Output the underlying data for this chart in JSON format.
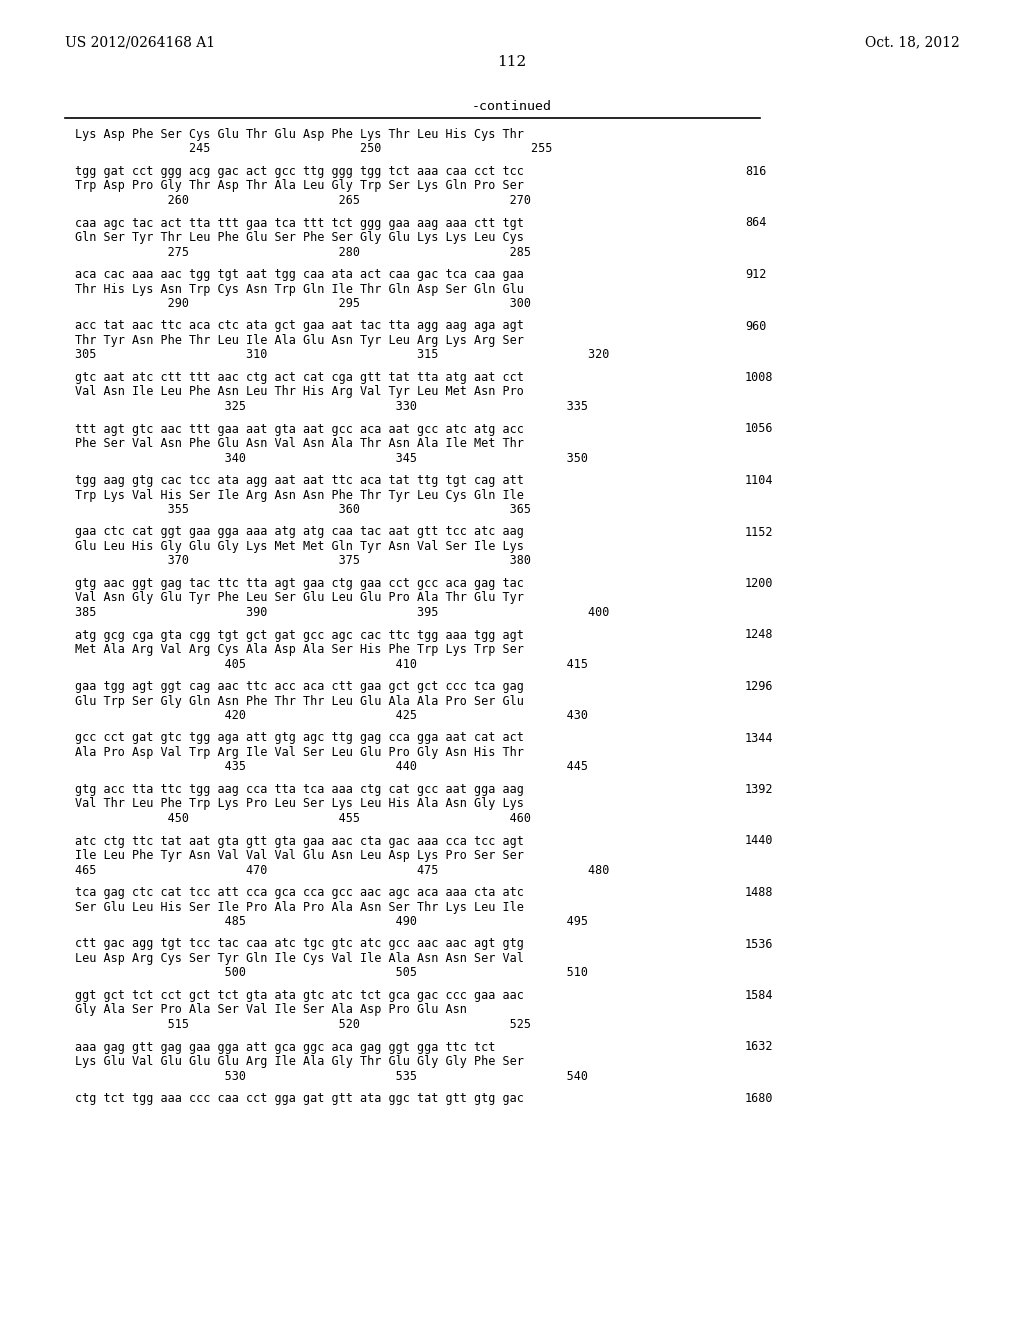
{
  "header_left": "US 2012/0264168 A1",
  "header_right": "Oct. 18, 2012",
  "page_number": "112",
  "continued_label": "-continued",
  "background_color": "#ffffff",
  "text_color": "#000000",
  "content": [
    {
      "type": "header_aa",
      "text": "Lys Asp Phe Ser Cys Glu Thr Glu Asp Phe Lys Thr Leu His Cys Thr",
      "nums": "                245                     250                     255"
    },
    {
      "type": "spacer"
    },
    {
      "type": "dna",
      "text": "tgg gat cct ggg acg gac act gcc ttg ggg tgg tct aaa caa cct tcc",
      "num": "816"
    },
    {
      "type": "aa",
      "text": "Trp Asp Pro Gly Thr Asp Thr Ala Leu Gly Trp Ser Lys Gln Pro Ser"
    },
    {
      "type": "nums",
      "text": "             260                     265                     270"
    },
    {
      "type": "spacer"
    },
    {
      "type": "dna",
      "text": "caa agc tac act tta ttt gaa tca ttt tct ggg gaa aag aaa ctt tgt",
      "num": "864"
    },
    {
      "type": "aa",
      "text": "Gln Ser Tyr Thr Leu Phe Glu Ser Phe Ser Gly Glu Lys Lys Leu Cys"
    },
    {
      "type": "nums",
      "text": "             275                     280                     285"
    },
    {
      "type": "spacer"
    },
    {
      "type": "dna",
      "text": "aca cac aaa aac tgg tgt aat tgg caa ata act caa gac tca caa gaa",
      "num": "912"
    },
    {
      "type": "aa",
      "text": "Thr His Lys Asn Trp Cys Asn Trp Gln Ile Thr Gln Asp Ser Gln Glu"
    },
    {
      "type": "nums",
      "text": "             290                     295                     300"
    },
    {
      "type": "spacer"
    },
    {
      "type": "dna",
      "text": "acc tat aac ttc aca ctc ata gct gaa aat tac tta agg aag aga agt",
      "num": "960"
    },
    {
      "type": "aa",
      "text": "Thr Tyr Asn Phe Thr Leu Ile Ala Glu Asn Tyr Leu Arg Lys Arg Ser"
    },
    {
      "type": "nums",
      "text": "305                     310                     315                     320"
    },
    {
      "type": "spacer"
    },
    {
      "type": "dna",
      "text": "gtc aat atc ctt ttt aac ctg act cat cga gtt tat tta atg aat cct",
      "num": "1008"
    },
    {
      "type": "aa",
      "text": "Val Asn Ile Leu Phe Asn Leu Thr His Arg Val Tyr Leu Met Asn Pro"
    },
    {
      "type": "nums",
      "text": "                     325                     330                     335"
    },
    {
      "type": "spacer"
    },
    {
      "type": "dna",
      "text": "ttt agt gtc aac ttt gaa aat gta aat gcc aca aat gcc atc atg acc",
      "num": "1056"
    },
    {
      "type": "aa",
      "text": "Phe Ser Val Asn Phe Glu Asn Val Asn Ala Thr Asn Ala Ile Met Thr"
    },
    {
      "type": "nums",
      "text": "                     340                     345                     350"
    },
    {
      "type": "spacer"
    },
    {
      "type": "dna",
      "text": "tgg aag gtg cac tcc ata agg aat aat ttc aca tat ttg tgt cag att",
      "num": "1104"
    },
    {
      "type": "aa",
      "text": "Trp Lys Val His Ser Ile Arg Asn Asn Phe Thr Tyr Leu Cys Gln Ile"
    },
    {
      "type": "nums",
      "text": "             355                     360                     365"
    },
    {
      "type": "spacer"
    },
    {
      "type": "dna",
      "text": "gaa ctc cat ggt gaa gga aaa atg atg caa tac aat gtt tcc atc aag",
      "num": "1152"
    },
    {
      "type": "aa",
      "text": "Glu Leu His Gly Glu Gly Lys Met Met Gln Tyr Asn Val Ser Ile Lys"
    },
    {
      "type": "nums",
      "text": "             370                     375                     380"
    },
    {
      "type": "spacer"
    },
    {
      "type": "dna",
      "text": "gtg aac ggt gag tac ttc tta agt gaa ctg gaa cct gcc aca gag tac",
      "num": "1200"
    },
    {
      "type": "aa",
      "text": "Val Asn Gly Glu Tyr Phe Leu Ser Glu Leu Glu Pro Ala Thr Glu Tyr"
    },
    {
      "type": "nums",
      "text": "385                     390                     395                     400"
    },
    {
      "type": "spacer"
    },
    {
      "type": "dna",
      "text": "atg gcg cga gta cgg tgt gct gat gcc agc cac ttc tgg aaa tgg agt",
      "num": "1248"
    },
    {
      "type": "aa",
      "text": "Met Ala Arg Val Arg Cys Ala Asp Ala Ser His Phe Trp Lys Trp Ser"
    },
    {
      "type": "nums",
      "text": "                     405                     410                     415"
    },
    {
      "type": "spacer"
    },
    {
      "type": "dna",
      "text": "gaa tgg agt ggt cag aac ttc acc aca ctt gaa gct gct ccc tca gag",
      "num": "1296"
    },
    {
      "type": "aa",
      "text": "Glu Trp Ser Gly Gln Asn Phe Thr Thr Leu Glu Ala Ala Pro Ser Glu"
    },
    {
      "type": "nums",
      "text": "                     420                     425                     430"
    },
    {
      "type": "spacer"
    },
    {
      "type": "dna",
      "text": "gcc cct gat gtc tgg aga att gtg agc ttg gag cca gga aat cat act",
      "num": "1344"
    },
    {
      "type": "aa",
      "text": "Ala Pro Asp Val Trp Arg Ile Val Ser Leu Glu Pro Gly Asn His Thr"
    },
    {
      "type": "nums",
      "text": "                     435                     440                     445"
    },
    {
      "type": "spacer"
    },
    {
      "type": "dna",
      "text": "gtg acc tta ttc tgg aag cca tta tca aaa ctg cat gcc aat gga aag",
      "num": "1392"
    },
    {
      "type": "aa",
      "text": "Val Thr Leu Phe Trp Lys Pro Leu Ser Lys Leu His Ala Asn Gly Lys"
    },
    {
      "type": "nums",
      "text": "             450                     455                     460"
    },
    {
      "type": "spacer"
    },
    {
      "type": "dna",
      "text": "atc ctg ttc tat aat gta gtt gta gaa aac cta gac aaa cca tcc agt",
      "num": "1440"
    },
    {
      "type": "aa",
      "text": "Ile Leu Phe Tyr Asn Val Val Val Glu Asn Leu Asp Lys Pro Ser Ser"
    },
    {
      "type": "nums",
      "text": "465                     470                     475                     480"
    },
    {
      "type": "spacer"
    },
    {
      "type": "dna",
      "text": "tca gag ctc cat tcc att cca gca cca gcc aac agc aca aaa cta atc",
      "num": "1488"
    },
    {
      "type": "aa",
      "text": "Ser Glu Leu His Ser Ile Pro Ala Pro Ala Asn Ser Thr Lys Leu Ile"
    },
    {
      "type": "nums",
      "text": "                     485                     490                     495"
    },
    {
      "type": "spacer"
    },
    {
      "type": "dna",
      "text": "ctt gac agg tgt tcc tac caa atc tgc gtc atc gcc aac aac agt gtg",
      "num": "1536"
    },
    {
      "type": "aa",
      "text": "Leu Asp Arg Cys Ser Tyr Gln Ile Cys Val Ile Ala Asn Asn Ser Val"
    },
    {
      "type": "nums",
      "text": "                     500                     505                     510"
    },
    {
      "type": "spacer"
    },
    {
      "type": "dna",
      "text": "ggt gct tct cct gct tct gta ata gtc atc tct gca gac ccc gaa aac",
      "num": "1584"
    },
    {
      "type": "aa",
      "text": "Gly Ala Ser Pro Ala Ser Val Ile Ser Ala Asp Pro Glu Asn"
    },
    {
      "type": "nums",
      "text": "             515                     520                     525"
    },
    {
      "type": "spacer"
    },
    {
      "type": "dna",
      "text": "aaa gag gtt gag gaa gga att gca ggc aca gag ggt gga ttc tct",
      "num": "1632"
    },
    {
      "type": "aa",
      "text": "Lys Glu Val Glu Glu Glu Arg Ile Ala Gly Thr Glu Gly Gly Phe Ser"
    },
    {
      "type": "nums",
      "text": "                     530                     535                     540"
    },
    {
      "type": "spacer"
    },
    {
      "type": "dna",
      "text": "ctg tct tgg aaa ccc caa cct gga gat gtt ata ggc tat gtt gtg gac",
      "num": "1680"
    }
  ]
}
